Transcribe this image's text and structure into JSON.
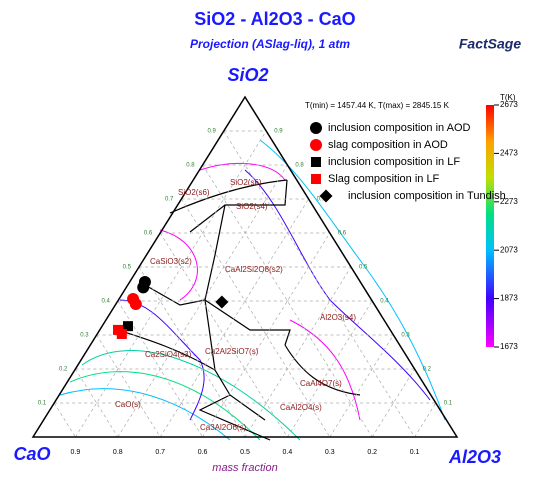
{
  "chart_data": {
    "type": "ternary",
    "title": "SiO2 - Al2O3 - CaO",
    "subtitle": "Projection (ASlag-liq),  1 atm",
    "logo": "FactSage",
    "apex_labels": {
      "top": "SiO2",
      "left": "CaO",
      "right": "Al2O3"
    },
    "axis_label": "mass fraction",
    "ticks": [
      0.1,
      0.2,
      0.3,
      0.4,
      0.5,
      0.6,
      0.7,
      0.8,
      0.9
    ],
    "temperature_note": "T(min) = 1457.44 K, T(max) = 2845.15 K",
    "colorbar": {
      "label": "T(K)",
      "ticks": [
        1673,
        1873,
        2073,
        2273,
        2473,
        2673
      ]
    },
    "phase_labels": [
      "SiO2(s6)",
      "SiO2(s6)",
      "SiO2(s4)",
      "CaSiO3(s2)",
      "CaAl2Si2O8(s2)",
      "Al2O3(s4)",
      "Ca2SiO4(s3)",
      "Ca2Al2SiO7(s)",
      "CaAl4O7(s)",
      "CaO(s)",
      "CaAl2O4(s)",
      "Ca3Al2O6(s)"
    ],
    "series": [
      {
        "name": "inclusion composition in AOD",
        "color": "#000000",
        "marker": "circle",
        "points": [
          [
            0.036,
            0.456
          ],
          [
            0.04,
            0.44
          ]
        ]
      },
      {
        "name": "slag composition in AOD",
        "color": "#ff0000",
        "marker": "circle",
        "points": [
          [
            0.033,
            0.406
          ],
          [
            0.047,
            0.391
          ]
        ]
      },
      {
        "name": "inclusion composition in LF",
        "color": "#000000",
        "marker": "square",
        "points": [
          [
            0.061,
            0.326
          ]
        ]
      },
      {
        "name": "Slag composition in LF",
        "color": "#ff0000",
        "marker": "square",
        "points": [
          [
            0.043,
            0.315
          ],
          [
            0.058,
            0.303
          ]
        ]
      },
      {
        "name": "inclusion composition in Tundish",
        "color": "#000000",
        "marker": "diamond",
        "points": [
          [
            0.247,
            0.397
          ]
        ]
      }
    ]
  }
}
